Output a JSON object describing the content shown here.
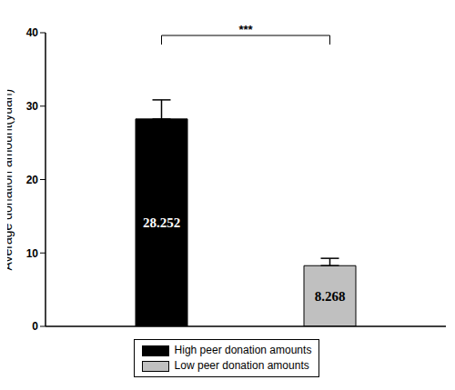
{
  "chart_data": {
    "type": "bar",
    "categories": [
      null
    ],
    "series": [
      {
        "name": "High peer donation amounts",
        "color": "#000000",
        "values": [
          28.252
        ],
        "errors": [
          2.6
        ]
      },
      {
        "name": "Low peer donation amounts",
        "color": "#c0c0c0",
        "values": [
          8.268
        ],
        "errors": [
          1.0
        ]
      }
    ],
    "y_label": "Average donation amount(yuan)",
    "ylim": [
      0,
      40
    ],
    "yticks": [
      0,
      10,
      20,
      30,
      40
    ],
    "data_labels": true,
    "annotation": "***",
    "legend": "bottom",
    "grid": false
  }
}
